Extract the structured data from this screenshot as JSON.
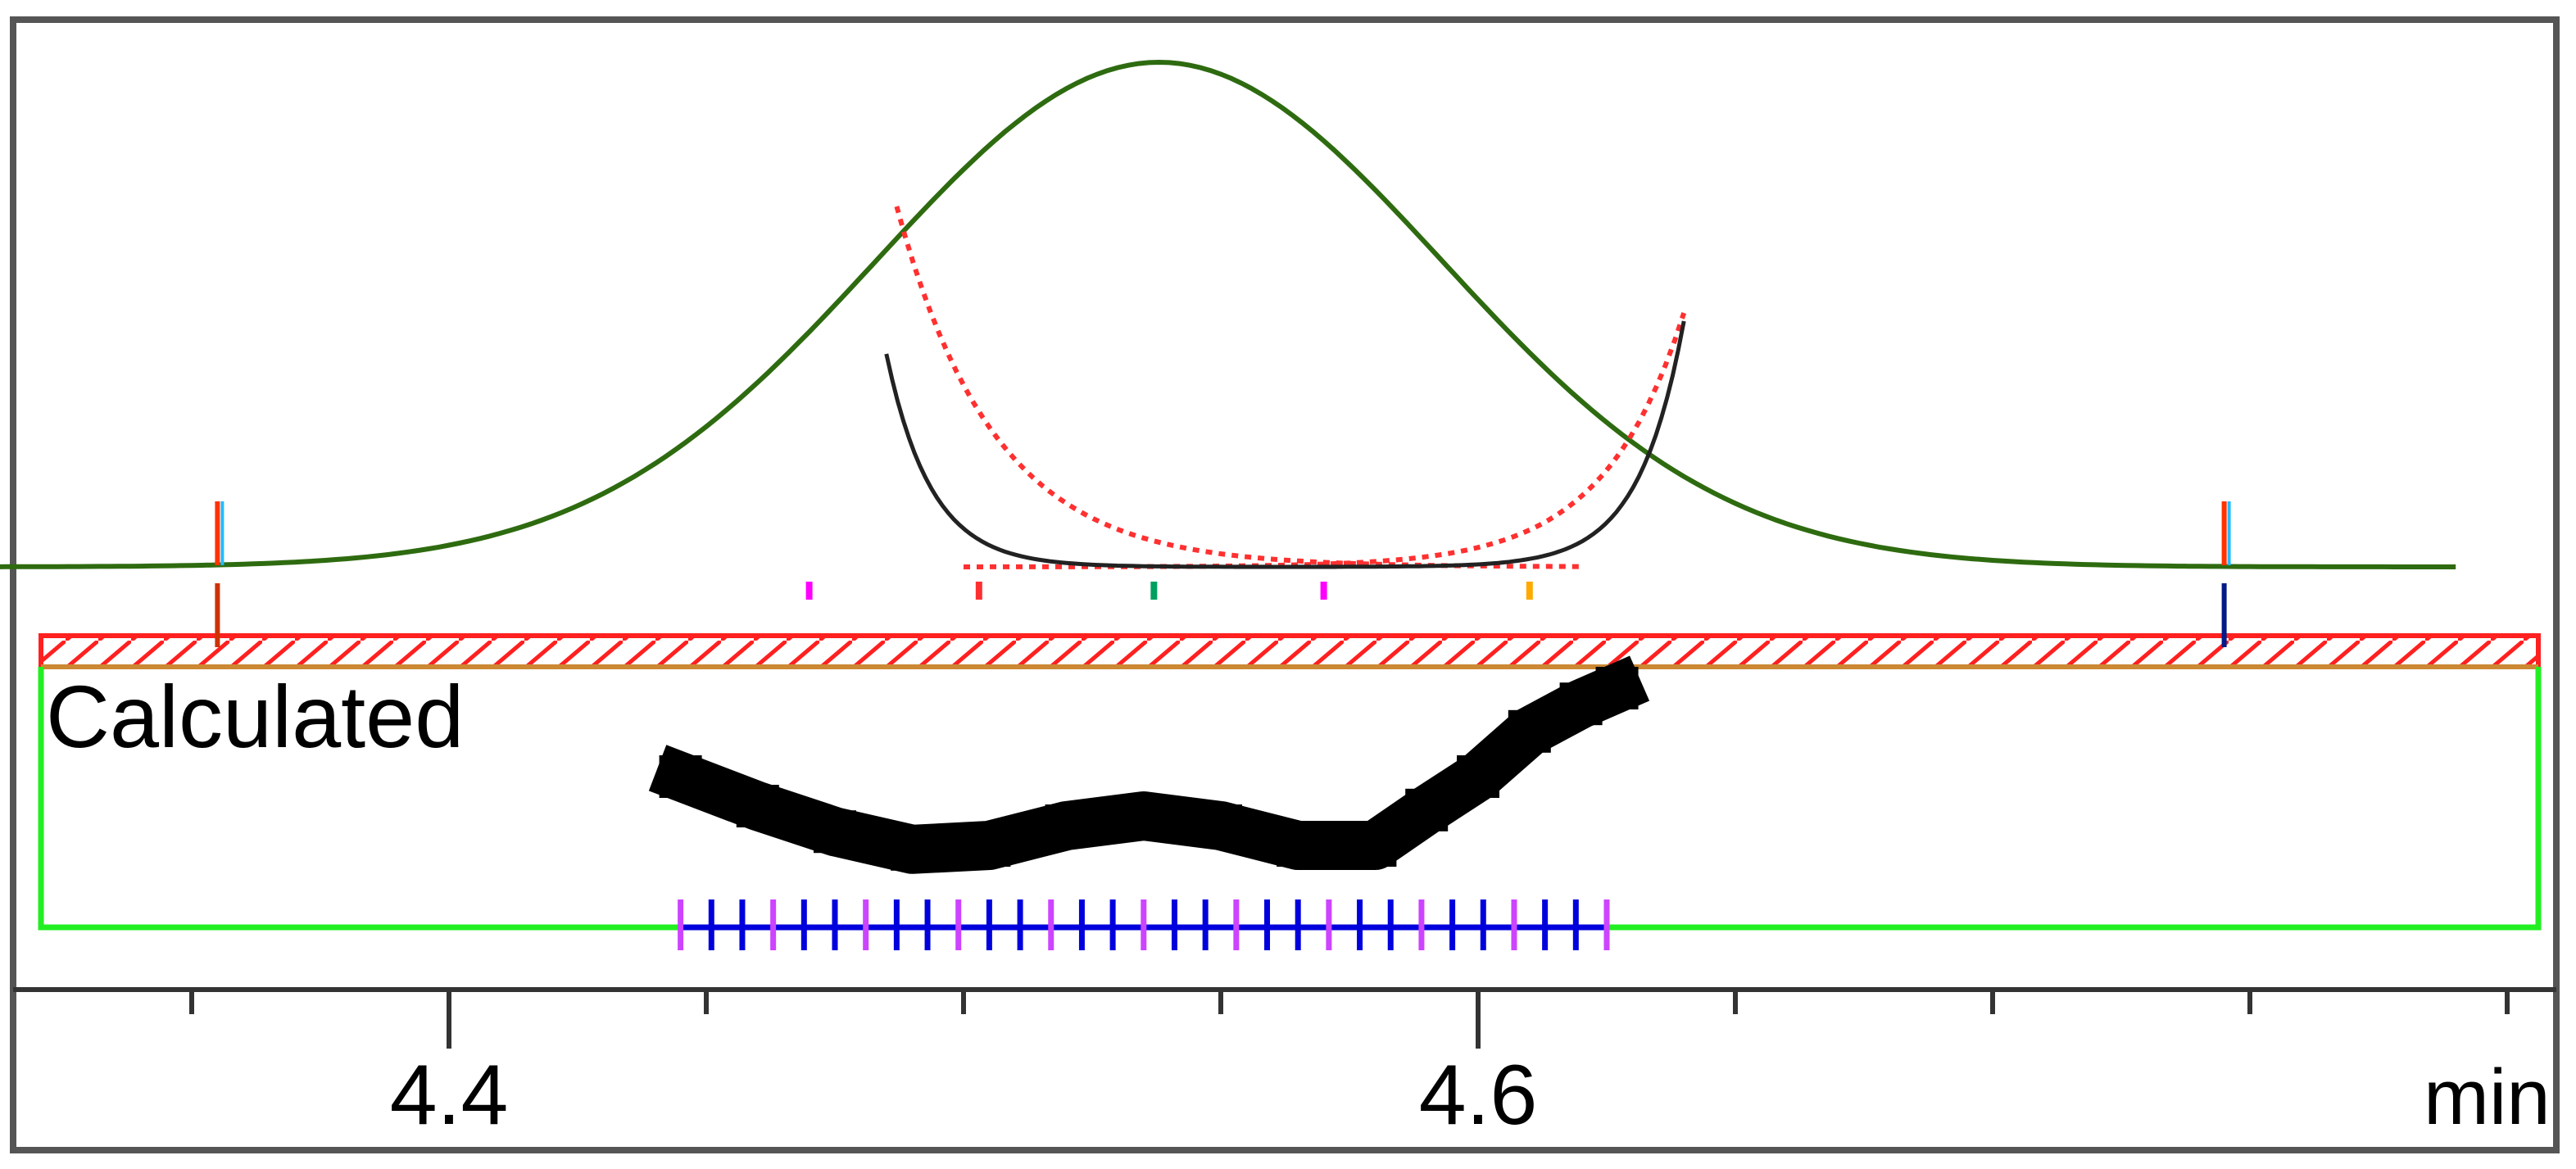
{
  "chart_data": {
    "type": "line",
    "x_unit_label": "min",
    "x_range": [
      4.3,
      4.8
    ],
    "x_ticks_labeled": [
      4.4,
      4.6
    ],
    "x_ticks_minor": [
      4.35,
      4.4,
      4.45,
      4.5,
      4.55,
      4.6,
      4.65,
      4.7,
      4.75,
      4.8
    ],
    "panel_label": "Calculated",
    "peak": {
      "apex_x": 4.538,
      "sigma_x": 0.055,
      "baseline_range": [
        4.306,
        4.79
      ]
    },
    "weight_curves": {
      "left_dotted": {
        "x_start": 4.487,
        "x_end": 4.62
      },
      "right_dotted": {
        "x_start": 4.5,
        "x_end": 4.64
      },
      "black": {
        "x_start": 4.485,
        "x_end": 4.64
      }
    },
    "integration_markers_x": [
      4.355,
      4.745
    ],
    "small_markers": [
      {
        "x": 4.47,
        "color": "#ff00ff"
      },
      {
        "x": 4.503,
        "color": "#ff3030"
      },
      {
        "x": 4.537,
        "color": "#00a060"
      },
      {
        "x": 4.57,
        "color": "#ff00ff"
      },
      {
        "x": 4.61,
        "color": "#ffaa00"
      }
    ],
    "calculated_points": {
      "x": [
        4.445,
        4.46,
        4.475,
        4.49,
        4.505,
        4.52,
        4.535,
        4.55,
        4.565,
        4.58,
        4.59,
        4.6,
        4.61,
        4.62,
        4.627
      ],
      "y": [
        0.55,
        0.4,
        0.27,
        0.18,
        0.2,
        0.3,
        0.35,
        0.3,
        0.2,
        0.2,
        0.38,
        0.55,
        0.78,
        0.92,
        1.0
      ]
    },
    "sample_ticks_x_range": [
      4.445,
      4.625
    ],
    "sample_tick_count": 31,
    "colors": {
      "gaussian": "#2e6b10",
      "dotted": "#ff3030",
      "black_curve": "#222222",
      "hatched_bar": "#ff2020",
      "panel_border": "#22ee22",
      "calculated_points": "#000000",
      "sample_ticks": "#0000dd",
      "frame": "#555555"
    }
  }
}
